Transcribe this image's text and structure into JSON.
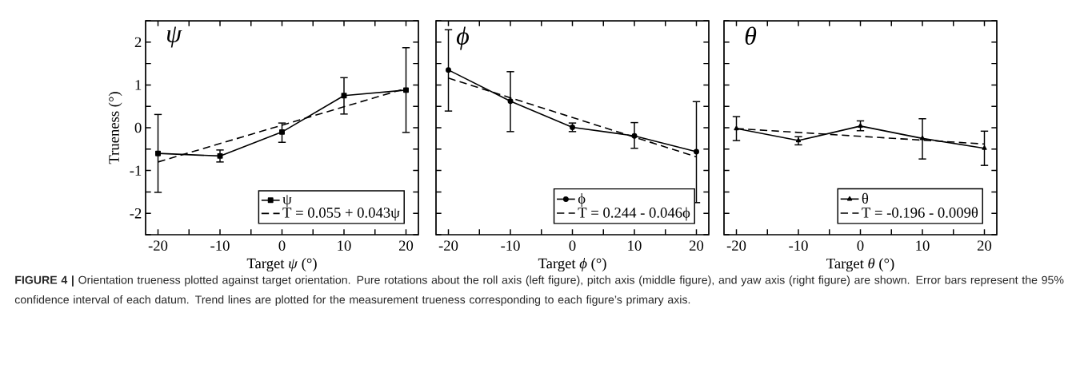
{
  "chart_data": [
    {
      "type": "line",
      "xlabel": "Target *ψ* (°)",
      "ylabel": "Trueness (°)",
      "annotations": [
        "ψ",
        "**FIGURE 4 |** Orientation trueness plotted against target orientation. Pure rotations about the roll axis (left figure), pitch axis (middle figure), and yaw axis (right figure) are shown. Error bars represent the 95% confidence interval of each datum. Trend lines are plotted for the measurement trueness corresponding to each figure’s primary axis."
      ],
      "xlim": [
        -22,
        22
      ],
      "ylim": [
        -2.5,
        2.5
      ],
      "xticks": [
        -20,
        {
          "value": -15,
          "label": null
        },
        -10,
        {
          "value": -5,
          "label": null
        },
        0,
        {
          "value": 5,
          "label": null
        },
        10,
        {
          "value": 15,
          "label": null
        },
        20
      ],
      "yticks": [
        {
          "value": -2.5,
          "label": null
        },
        -2,
        {
          "value": -1.5,
          "label": null
        },
        -1,
        {
          "value": -0.5,
          "label": null
        },
        0,
        {
          "value": 0.5,
          "label": null
        },
        1,
        {
          "value": 1.5,
          "label": null
        },
        2,
        {
          "value": 2.5,
          "label": null
        }
      ],
      "legend": "bottom right",
      "series": [
        {
          "name": "ψ",
          "color": "#000000",
          "x": [
            -20,
            -10,
            0,
            10,
            20
          ],
          "values": [
            -0.6,
            -0.66,
            -0.1,
            0.75,
            0.88
          ],
          "errors": [
            [
              -1.51,
              0.31
            ],
            [
              -0.8,
              -0.52
            ],
            [
              -0.34,
              0.11
            ],
            [
              0.32,
              1.17
            ],
            [
              -0.11,
              1.87
            ]
          ],
          "marker": "square",
          "line_style": "solid"
        },
        {
          "name": "T = 0.055 + 0.043ψ",
          "type": "line",
          "color": "#000000",
          "x": [
            -20,
            20
          ],
          "values": [
            -0.8,
            0.92
          ],
          "marker": "none",
          "line_style": "dashed"
        }
      ]
    },
    {
      "type": "line",
      "xlabel": "Target *ϕ* (°)",
      "annotations": [
        "ϕ"
      ],
      "tick_labels": "x",
      "xlim": [
        -22,
        22
      ],
      "ylim": [
        -2.5,
        2.5
      ],
      "xticks": [
        -20,
        {
          "value": -15,
          "label": null
        },
        -10,
        {
          "value": -5,
          "label": null
        },
        0,
        {
          "value": 5,
          "label": null
        },
        10,
        {
          "value": 15,
          "label": null
        },
        20
      ],
      "yticks": [
        {
          "value": -2.5,
          "label": null
        },
        -2,
        {
          "value": -1.5,
          "label": null
        },
        -1,
        {
          "value": -0.5,
          "label": null
        },
        0,
        {
          "value": 0.5,
          "label": null
        },
        1,
        {
          "value": 1.5,
          "label": null
        },
        2,
        {
          "value": 2.5,
          "label": null
        }
      ],
      "legend": "bottom right",
      "series": [
        {
          "name": "ϕ",
          "color": "#000000",
          "x": [
            -20,
            -10,
            0,
            10,
            20
          ],
          "values": [
            1.35,
            0.62,
            0.01,
            -0.19,
            -0.56
          ],
          "errors": [
            [
              0.39,
              2.29
            ],
            [
              -0.09,
              1.31
            ],
            [
              -0.09,
              0.11
            ],
            [
              -0.48,
              0.12
            ],
            [
              -1.75,
              0.61
            ]
          ],
          "marker": "circle",
          "line_style": "solid"
        },
        {
          "name": "T = 0.244 - 0.046ϕ",
          "type": "line",
          "color": "#000000",
          "x": [
            -20,
            20
          ],
          "values": [
            1.16,
            -0.68
          ],
          "marker": "none",
          "line_style": "dashed"
        }
      ]
    },
    {
      "type": "line",
      "xlabel": "Target *θ* (°)",
      "annotations": [
        "θ"
      ],
      "tick_labels": "x",
      "xlim": [
        -22,
        22
      ],
      "ylim": [
        -2.5,
        2.5
      ],
      "xticks": [
        -20,
        {
          "value": -15,
          "label": null
        },
        -10,
        {
          "value": -5,
          "label": null
        },
        0,
        {
          "value": 5,
          "label": null
        },
        10,
        {
          "value": 15,
          "label": null
        },
        20
      ],
      "yticks": [
        {
          "value": -2.5,
          "label": null
        },
        -2,
        {
          "value": -1.5,
          "label": null
        },
        -1,
        {
          "value": -0.5,
          "label": null
        },
        0,
        {
          "value": 0.5,
          "label": null
        },
        1,
        {
          "value": 1.5,
          "label": null
        },
        2,
        {
          "value": 2.5,
          "label": null
        }
      ],
      "legend": "bottom right",
      "series": [
        {
          "name": "θ",
          "color": "#000000",
          "x": [
            -20,
            -10,
            0,
            10,
            20
          ],
          "values": [
            -0.02,
            -0.3,
            0.04,
            -0.25,
            -0.48
          ],
          "errors": [
            [
              -0.3,
              0.26
            ],
            [
              -0.4,
              -0.21
            ],
            [
              -0.07,
              0.16
            ],
            [
              -0.73,
              0.21
            ],
            [
              -0.88,
              -0.08
            ]
          ],
          "marker": "triangle",
          "line_style": "solid"
        },
        {
          "name": "T = -0.196 - 0.009θ",
          "type": "line",
          "color": "#000000",
          "x": [
            -20,
            20
          ],
          "values": [
            -0.02,
            -0.38
          ],
          "marker": "none",
          "line_style": "dashed"
        }
      ]
    }
  ]
}
